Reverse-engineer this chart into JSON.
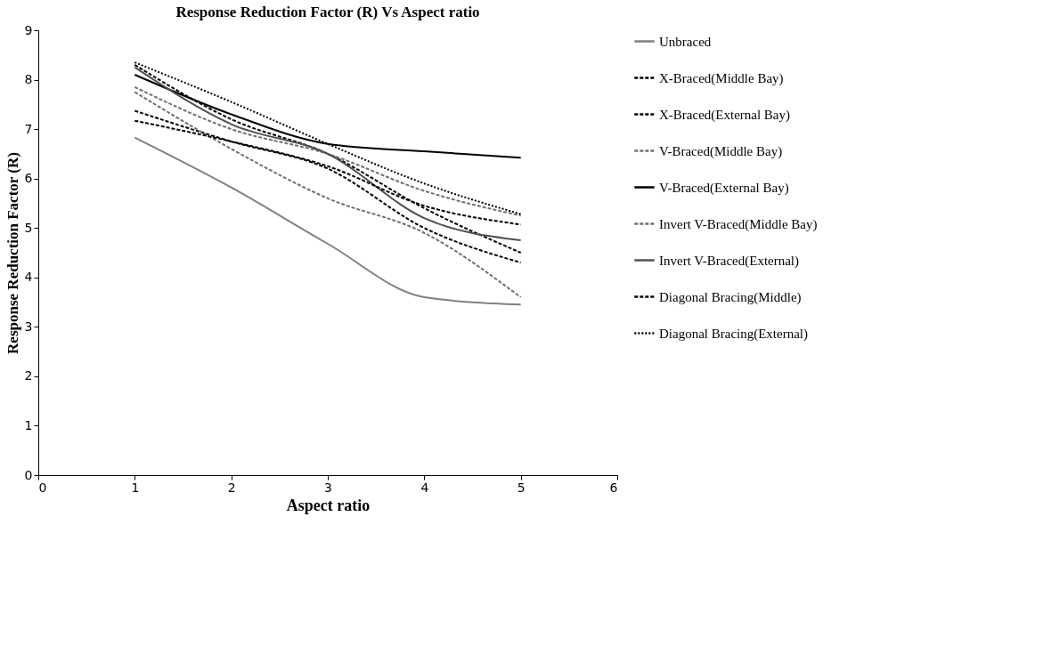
{
  "chart_data": {
    "type": "line",
    "title": "Response Reduction Factor (R) Vs Aspect ratio",
    "xlabel": "Aspect ratio",
    "ylabel": "Response Reduction Factor (R)",
    "x": [
      1,
      2,
      3,
      4,
      5
    ],
    "xlim": [
      0,
      6
    ],
    "xticks": [
      0,
      1,
      2,
      3,
      4,
      5,
      6
    ],
    "ylim": [
      0,
      9
    ],
    "yticks": [
      0,
      1,
      2,
      3,
      4,
      5,
      6,
      7,
      8,
      9
    ],
    "grid": false,
    "legend": "right",
    "marker": "none",
    "series": [
      {
        "name": "Unbraced",
        "color": "#808080",
        "line_style": "solid",
        "values": [
          6.83,
          5.82,
          4.68,
          3.6,
          3.45
        ]
      },
      {
        "name": "X-Braced(Middle Bay)",
        "color": "#000000",
        "line_style": "dashed",
        "values": [
          7.37,
          6.75,
          6.2,
          5.0,
          4.3
        ]
      },
      {
        "name": "X-Braced(External Bay)",
        "color": "#000000",
        "line_style": "dashed",
        "values": [
          8.3,
          7.2,
          6.5,
          5.4,
          4.5
        ]
      },
      {
        "name": "V-Braced(Middle Bay)",
        "color": "#707070",
        "line_style": "dashed",
        "values": [
          7.85,
          7.0,
          6.5,
          5.75,
          5.25
        ]
      },
      {
        "name": "V-Braced(External Bay)",
        "color": "#000000",
        "line_style": "solid",
        "values": [
          8.1,
          7.3,
          6.7,
          6.55,
          6.42
        ]
      },
      {
        "name": "Invert V-Braced(Middle Bay)",
        "color": "#707070",
        "line_style": "dashed",
        "values": [
          7.75,
          6.6,
          5.6,
          4.9,
          3.6
        ]
      },
      {
        "name": "Invert V-Braced(External)",
        "color": "#505050",
        "line_style": "solid",
        "values": [
          8.25,
          7.1,
          6.5,
          5.2,
          4.75
        ]
      },
      {
        "name": "Diagonal Bracing(Middle)",
        "color": "#000000",
        "line_style": "dashed",
        "values": [
          7.17,
          6.75,
          6.25,
          5.45,
          5.07
        ]
      },
      {
        "name": "Diagonal Bracing(External)",
        "color": "#000000",
        "line_style": "dotted",
        "values": [
          8.35,
          7.55,
          6.7,
          5.9,
          5.28
        ]
      }
    ]
  }
}
